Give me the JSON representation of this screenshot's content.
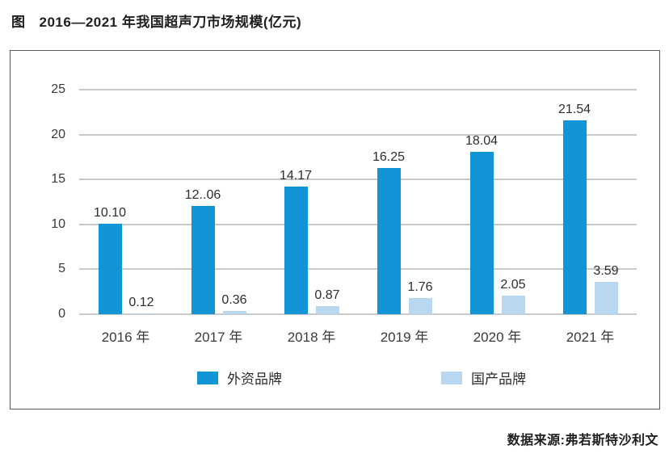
{
  "title": {
    "prefix": "图",
    "text": "2016—2021 年我国超声刀市场规模(亿元)"
  },
  "source": "数据来源:弗若斯特沙利文",
  "colors": {
    "foreign_brand": "#1295d6",
    "domestic_brand": "#b7d8f0",
    "gridline": "#c9c9c9",
    "axis_text": "#3a3a3a",
    "frame_border": "#57585b"
  },
  "chart_data": {
    "type": "bar",
    "title": "2016—2021 年我国超声刀市场规模(亿元)",
    "categories": [
      "2016 年",
      "2017 年",
      "2018 年",
      "2019 年",
      "2020 年",
      "2021 年"
    ],
    "series": [
      {
        "name": "外资品牌",
        "color": "#1295d6",
        "values": [
          10.1,
          12.06,
          14.17,
          16.25,
          18.04,
          21.54
        ],
        "display_labels": [
          "10.10",
          "12..06",
          "14.17",
          "16.25",
          "18.04",
          "21.54"
        ]
      },
      {
        "name": "国产品牌",
        "color": "#b7d8f0",
        "values": [
          0.12,
          0.36,
          0.87,
          1.76,
          2.05,
          3.59
        ],
        "display_labels": [
          "0.12",
          "0.36",
          "0.87",
          "1.76",
          "2.05",
          "3.59"
        ]
      }
    ],
    "xlabel": "",
    "ylabel": "",
    "yticks": [
      0,
      5,
      10,
      15,
      20,
      25
    ],
    "ylim": [
      0,
      25
    ],
    "grid": true,
    "legend_position": "bottom-inside"
  }
}
